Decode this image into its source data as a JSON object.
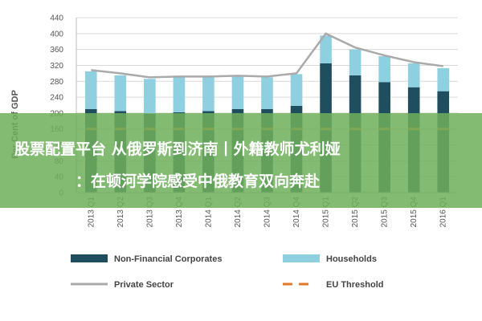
{
  "chart_data": {
    "type": "bar",
    "stacked": true,
    "ylabel": "Per Cent of GDP",
    "ylim": [
      0,
      440
    ],
    "yticks": [
      0,
      40,
      80,
      120,
      160,
      200,
      240,
      280,
      320,
      360,
      400,
      440
    ],
    "grid": true,
    "legend_position": "bottom",
    "categories": [
      "2013 Q1",
      "2013 Q2",
      "2013 Q3",
      "2013 Q4",
      "2014 Q1",
      "2014 Q2",
      "2014 Q3",
      "2014 Q4",
      "2015 Q1",
      "2015 Q2",
      "2015 Q3",
      "2015 Q4",
      "2016 Q1"
    ],
    "series": [
      {
        "name": "Non-Financial Corporates",
        "kind": "bar",
        "color": "#1f4e5f",
        "values": [
          210,
          205,
          198,
          202,
          205,
          210,
          210,
          218,
          325,
          295,
          278,
          265,
          255
        ]
      },
      {
        "name": "Households",
        "kind": "bar",
        "color": "#8ecfe0",
        "values": [
          95,
          90,
          88,
          88,
          85,
          82,
          80,
          80,
          70,
          65,
          65,
          60,
          58
        ]
      },
      {
        "name": "Private Sector",
        "kind": "line",
        "color": "#aaaaaa",
        "values": [
          308,
          300,
          290,
          292,
          292,
          294,
          292,
          300,
          400,
          365,
          345,
          328,
          318
        ]
      },
      {
        "name": "EU Threshold",
        "kind": "dash",
        "color": "#e07a2a",
        "values": [
          160,
          160,
          160,
          160,
          160,
          160,
          160,
          160,
          160,
          160,
          160,
          160,
          160
        ]
      }
    ]
  },
  "banner": {
    "line1": "股票配置平台 从俄罗斯到济南丨外籍教师尤利娅",
    "line2": "：在顿河学院感受中俄教育双向奔赴"
  }
}
